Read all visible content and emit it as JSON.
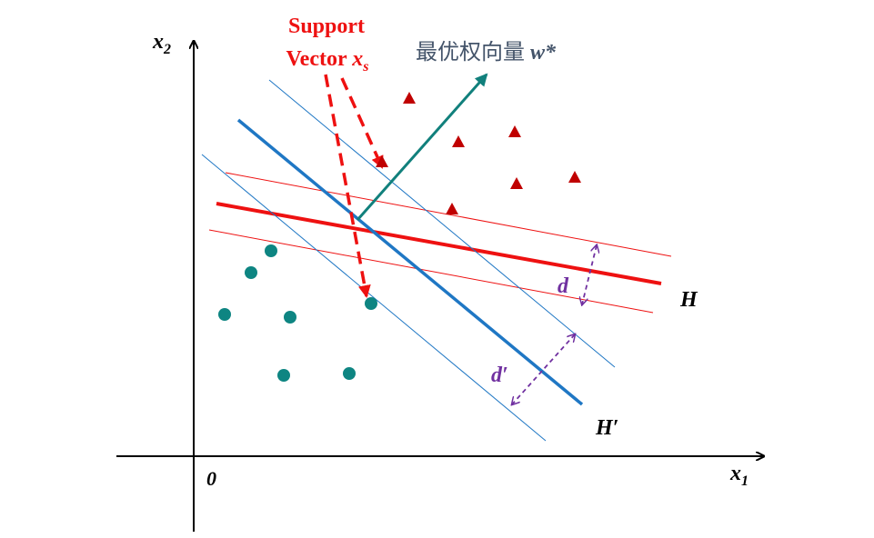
{
  "axes": {
    "y_label": {
      "base": "x",
      "sub": "2"
    },
    "x_label": {
      "base": "x",
      "sub": "1"
    },
    "origin": "0"
  },
  "support_vector": {
    "line1": "Support",
    "line2": "Vector",
    "symbol": "x",
    "sub": "s"
  },
  "weight": {
    "label": "最优权向量",
    "symbol": "w*"
  },
  "hyperplanes": {
    "h": "H",
    "h_prime": "H′"
  },
  "margins": {
    "d": "d",
    "d_prime": "d′"
  }
}
